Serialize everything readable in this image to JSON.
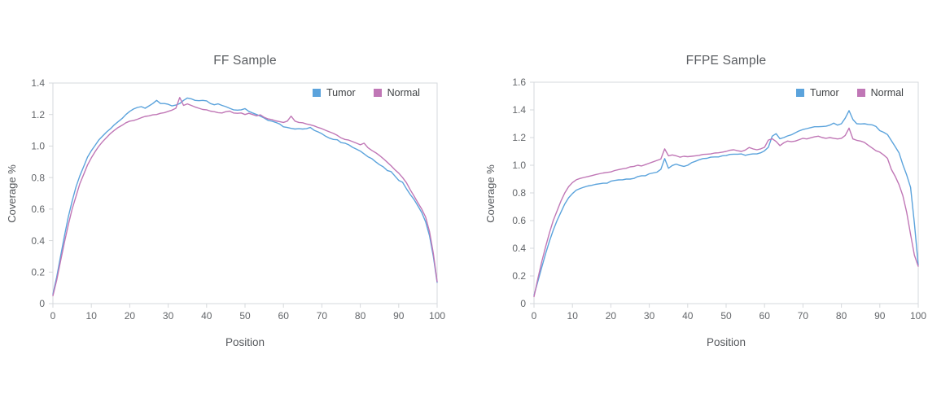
{
  "page": {
    "background": "#ffffff"
  },
  "chart_data": [
    {
      "type": "line",
      "title": "FF Sample",
      "xlabel": "Position",
      "ylabel": "Coverage %",
      "x_range": [
        0,
        100
      ],
      "x_step": 1,
      "ylim": [
        0,
        1.4
      ],
      "grid": false,
      "legend_position": "top-right-inside",
      "frame_color": "#d6d9dc",
      "xtick_values": [
        0,
        10,
        20,
        30,
        40,
        50,
        60,
        70,
        80,
        90,
        100
      ],
      "xtick_labels": [
        "0",
        "10",
        "20",
        "30",
        "40",
        "50",
        "60",
        "70",
        "80",
        "90",
        "100"
      ],
      "ytick_values": [
        0,
        0.2,
        0.4,
        0.6,
        0.8,
        1.0,
        1.2,
        1.4
      ],
      "ytick_labels": [
        "0",
        "0.2",
        "0.4",
        "0.6",
        "0.8",
        "1.0",
        "1.2",
        "1.4"
      ],
      "series": [
        {
          "name": "Tumor",
          "color": "#5ba3dc",
          "values": [
            0.06,
            0.17,
            0.3,
            0.43,
            0.55,
            0.65,
            0.74,
            0.81,
            0.87,
            0.93,
            0.97,
            1.005,
            1.04,
            1.065,
            1.09,
            1.11,
            1.135,
            1.155,
            1.175,
            1.2,
            1.22,
            1.235,
            1.245,
            1.25,
            1.24,
            1.255,
            1.27,
            1.29,
            1.27,
            1.27,
            1.265,
            1.255,
            1.26,
            1.27,
            1.29,
            1.305,
            1.3,
            1.29,
            1.288,
            1.29,
            1.287,
            1.27,
            1.262,
            1.268,
            1.258,
            1.25,
            1.24,
            1.23,
            1.228,
            1.23,
            1.238,
            1.22,
            1.21,
            1.2,
            1.19,
            1.178,
            1.163,
            1.158,
            1.15,
            1.14,
            1.122,
            1.118,
            1.112,
            1.108,
            1.11,
            1.108,
            1.11,
            1.118,
            1.1,
            1.09,
            1.078,
            1.062,
            1.05,
            1.042,
            1.04,
            1.022,
            1.018,
            1.008,
            0.992,
            0.98,
            0.968,
            0.95,
            0.932,
            0.92,
            0.9,
            0.882,
            0.868,
            0.845,
            0.838,
            0.81,
            0.782,
            0.77,
            0.73,
            0.692,
            0.66,
            0.62,
            0.578,
            0.52,
            0.432,
            0.3,
            0.135
          ]
        },
        {
          "name": "Normal",
          "color": "#c077b6",
          "values": [
            0.05,
            0.15,
            0.27,
            0.39,
            0.5,
            0.6,
            0.68,
            0.76,
            0.82,
            0.88,
            0.925,
            0.965,
            1.0,
            1.03,
            1.055,
            1.08,
            1.1,
            1.118,
            1.132,
            1.148,
            1.158,
            1.162,
            1.17,
            1.18,
            1.188,
            1.192,
            1.198,
            1.2,
            1.208,
            1.212,
            1.22,
            1.228,
            1.24,
            1.308,
            1.258,
            1.268,
            1.258,
            1.248,
            1.24,
            1.232,
            1.23,
            1.222,
            1.218,
            1.212,
            1.21,
            1.218,
            1.222,
            1.21,
            1.208,
            1.21,
            1.2,
            1.208,
            1.2,
            1.192,
            1.198,
            1.182,
            1.172,
            1.168,
            1.16,
            1.155,
            1.15,
            1.158,
            1.19,
            1.158,
            1.15,
            1.148,
            1.14,
            1.135,
            1.128,
            1.118,
            1.11,
            1.1,
            1.09,
            1.08,
            1.068,
            1.052,
            1.042,
            1.038,
            1.028,
            1.018,
            1.008,
            1.018,
            0.99,
            0.972,
            0.958,
            0.94,
            0.92,
            0.898,
            0.875,
            0.85,
            0.828,
            0.8,
            0.768,
            0.722,
            0.682,
            0.64,
            0.6,
            0.55,
            0.458,
            0.32,
            0.14
          ]
        }
      ]
    },
    {
      "type": "line",
      "title": "FFPE Sample",
      "xlabel": "Position",
      "ylabel": "Coverage %",
      "x_range": [
        0,
        100
      ],
      "x_step": 1,
      "ylim": [
        0,
        1.6
      ],
      "grid": false,
      "legend_position": "top-right-inside",
      "frame_color": "#d6d9dc",
      "xtick_values": [
        0,
        10,
        20,
        30,
        40,
        50,
        60,
        70,
        80,
        90,
        100
      ],
      "xtick_labels": [
        "0",
        "10",
        "20",
        "30",
        "40",
        "50",
        "60",
        "70",
        "80",
        "90",
        "100"
      ],
      "ytick_values": [
        0,
        0.2,
        0.4,
        0.6,
        0.8,
        1.0,
        1.2,
        1.4,
        1.6
      ],
      "ytick_labels": [
        "0",
        "0.2",
        "0.4",
        "0.6",
        "0.8",
        "1.0",
        "1.2",
        "1.4",
        "1.6"
      ],
      "series": [
        {
          "name": "Tumor",
          "color": "#5ba3dc",
          "values": [
            0.06,
            0.16,
            0.26,
            0.36,
            0.45,
            0.53,
            0.6,
            0.66,
            0.72,
            0.765,
            0.795,
            0.82,
            0.832,
            0.842,
            0.85,
            0.855,
            0.862,
            0.866,
            0.87,
            0.87,
            0.885,
            0.89,
            0.894,
            0.895,
            0.9,
            0.9,
            0.905,
            0.918,
            0.924,
            0.924,
            0.938,
            0.944,
            0.95,
            0.97,
            1.048,
            0.978,
            0.998,
            1.008,
            0.998,
            0.992,
            1.0,
            1.018,
            1.028,
            1.04,
            1.048,
            1.05,
            1.058,
            1.06,
            1.06,
            1.068,
            1.07,
            1.078,
            1.08,
            1.08,
            1.082,
            1.072,
            1.078,
            1.082,
            1.082,
            1.09,
            1.105,
            1.13,
            1.21,
            1.228,
            1.192,
            1.2,
            1.212,
            1.22,
            1.235,
            1.248,
            1.258,
            1.265,
            1.272,
            1.278,
            1.278,
            1.28,
            1.282,
            1.29,
            1.305,
            1.29,
            1.3,
            1.34,
            1.395,
            1.33,
            1.3,
            1.298,
            1.3,
            1.295,
            1.292,
            1.28,
            1.25,
            1.238,
            1.222,
            1.178,
            1.135,
            1.09,
            1.005,
            0.93,
            0.84,
            0.58,
            0.28
          ]
        },
        {
          "name": "Normal",
          "color": "#c077b6",
          "values": [
            0.05,
            0.18,
            0.3,
            0.41,
            0.51,
            0.6,
            0.67,
            0.74,
            0.8,
            0.845,
            0.875,
            0.895,
            0.905,
            0.912,
            0.918,
            0.925,
            0.932,
            0.938,
            0.944,
            0.948,
            0.952,
            0.962,
            0.968,
            0.974,
            0.978,
            0.988,
            0.992,
            1.0,
            0.995,
            1.005,
            1.015,
            1.025,
            1.035,
            1.045,
            1.118,
            1.068,
            1.075,
            1.068,
            1.058,
            1.065,
            1.062,
            1.065,
            1.068,
            1.072,
            1.078,
            1.08,
            1.082,
            1.088,
            1.09,
            1.095,
            1.1,
            1.108,
            1.112,
            1.105,
            1.1,
            1.11,
            1.128,
            1.118,
            1.112,
            1.118,
            1.13,
            1.182,
            1.192,
            1.172,
            1.142,
            1.162,
            1.175,
            1.17,
            1.175,
            1.185,
            1.195,
            1.19,
            1.198,
            1.205,
            1.21,
            1.2,
            1.195,
            1.2,
            1.195,
            1.19,
            1.195,
            1.215,
            1.268,
            1.19,
            1.18,
            1.175,
            1.165,
            1.145,
            1.125,
            1.105,
            1.095,
            1.075,
            1.05,
            0.97,
            0.92,
            0.86,
            0.78,
            0.66,
            0.5,
            0.35,
            0.27
          ]
        }
      ]
    }
  ]
}
